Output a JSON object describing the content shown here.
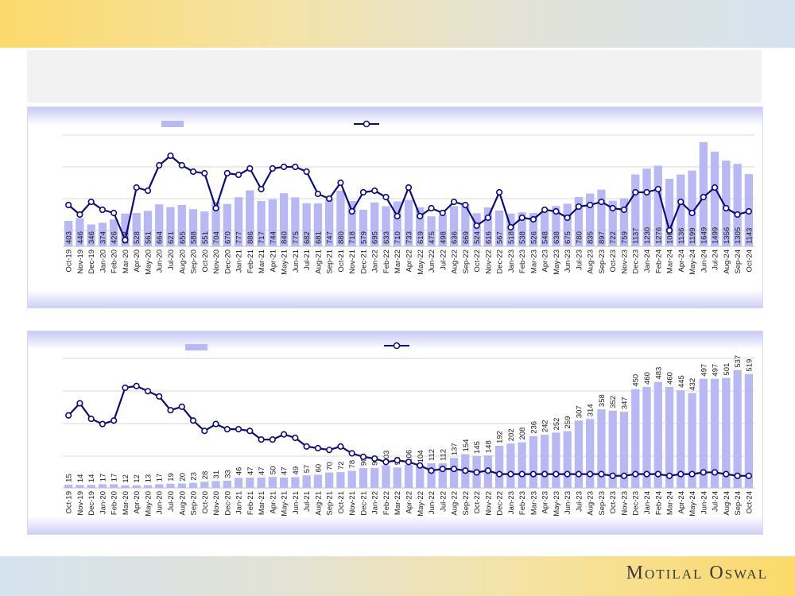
{
  "brand": {
    "name": "Motilal Oswal"
  },
  "colors": {
    "bar": "#b8b8f4",
    "line": "#0d0d7a",
    "grid": "#d9d9d9",
    "text": "#1a1a1a"
  },
  "chart_data": [
    {
      "type": "bar+line",
      "categories": [
        "Oct-19",
        "Nov-19",
        "Dec-19",
        "Jan-20",
        "Feb-20",
        "Mar-20",
        "Apr-20",
        "May-20",
        "Jun-20",
        "Jul-20",
        "Aug-20",
        "Sep-20",
        "Oct-20",
        "Nov-20",
        "Dec-20",
        "Jan-21",
        "Feb-21",
        "Mar-21",
        "Apr-21",
        "May-21",
        "Jun-21",
        "Jul-21",
        "Aug-21",
        "Sep-21",
        "Oct-21",
        "Nov-21",
        "Dec-21",
        "Jan-22",
        "Feb-22",
        "Mar-22",
        "Apr-22",
        "May-22",
        "Jun-22",
        "Jul-22",
        "Aug-22",
        "Sep-22",
        "Oct-22",
        "Nov-22",
        "Dec-22",
        "Jan-23",
        "Feb-23",
        "Mar-23",
        "Apr-23",
        "May-23",
        "Jun-23",
        "Jul-23",
        "Aug-23",
        "Sep-23",
        "Oct-23",
        "Nov-23",
        "Dec-23",
        "Jan-24",
        "Feb-24",
        "Mar-24",
        "Apr-24",
        "May-24",
        "Jun-24",
        "Jul-24",
        "Aug-24",
        "Sep-24",
        "Oct-24"
      ],
      "series": [
        {
          "kind": "bar",
          "values": [
            403,
            446,
            346,
            374,
            426,
            518,
            528,
            561,
            664,
            621,
            655,
            588,
            551,
            704,
            670,
            777,
            886,
            717,
            744,
            840,
            775,
            682,
            681,
            747,
            880,
            718,
            579,
            695,
            633,
            710,
            733,
            619,
            475,
            498,
            636,
            669,
            524,
            616,
            567,
            518,
            538,
            526,
            548,
            638,
            675,
            780,
            835,
            897,
            722,
            759,
            1137,
            1230,
            1276,
            1068,
            1136,
            1199,
            1649,
            1499,
            1356,
            1305,
            1143
          ]
        },
        {
          "kind": "line",
          "values": [
            0.0,
            -0.6,
            0.2,
            -0.3,
            -0.5,
            -2.2,
            1.1,
            0.9,
            2.5,
            3.1,
            2.5,
            2.1,
            2.0,
            -0.2,
            2.0,
            1.9,
            2.3,
            1.0,
            2.3,
            2.4,
            2.4,
            2.1,
            0.7,
            0.4,
            1.4,
            -0.4,
            0.8,
            0.9,
            0.5,
            -0.7,
            1.1,
            -0.7,
            -0.2,
            -0.5,
            0.2,
            0.0,
            -1.3,
            -0.8,
            0.8,
            -1.4,
            -0.8,
            -0.9,
            -0.3,
            -0.4,
            -0.8,
            -0.1,
            0.0,
            0.2,
            -0.2,
            -0.3,
            0.8,
            0.8,
            1.0,
            -1.6,
            0.2,
            -0.5,
            0.5,
            1.1,
            -0.2,
            -0.6,
            -0.4
          ]
        }
      ]
    },
    {
      "type": "bar+line",
      "categories": [
        "Oct-19",
        "Nov-19",
        "Dec-19",
        "Jan-20",
        "Feb-20",
        "Mar-20",
        "Apr-20",
        "May-20",
        "Jun-20",
        "Jul-20",
        "Aug-20",
        "Sep-20",
        "Oct-20",
        "Nov-20",
        "Dec-20",
        "Jan-21",
        "Feb-21",
        "Mar-21",
        "Apr-21",
        "May-21",
        "Jun-21",
        "Jul-21",
        "Aug-21",
        "Sep-21",
        "Oct-21",
        "Nov-21",
        "Dec-21",
        "Jan-22",
        "Feb-22",
        "Mar-22",
        "Apr-22",
        "May-22",
        "Jun-22",
        "Jul-22",
        "Aug-22",
        "Sep-22",
        "Oct-22",
        "Nov-22",
        "Dec-22",
        "Jan-23",
        "Feb-23",
        "Mar-23",
        "Apr-23",
        "May-23",
        "Jun-23",
        "Jul-23",
        "Aug-23",
        "Sep-23",
        "Oct-23",
        "Nov-23",
        "Dec-23",
        "Jan-24",
        "Feb-24",
        "Mar-24",
        "Apr-24",
        "May-24",
        "Jun-24",
        "Jul-24",
        "Aug-24",
        "Sep-24",
        "Oct-24"
      ],
      "series": [
        {
          "kind": "bar",
          "values": [
            15,
            14,
            14,
            17,
            17,
            12,
            12,
            13,
            17,
            19,
            20,
            23,
            28,
            31,
            33,
            46,
            47,
            47,
            50,
            47,
            49,
            57,
            60,
            70,
            72,
            78,
            90,
            91,
            103,
            93,
            106,
            104,
            112,
            112,
            137,
            154,
            145,
            148,
            192,
            202,
            208,
            236,
            242,
            252,
            259,
            307,
            314,
            358,
            352,
            347,
            450,
            460,
            483,
            460,
            445,
            432,
            497,
            497,
            501,
            537,
            519
          ]
        },
        {
          "kind": "line",
          "values": [
            4.7,
            5.4,
            4.5,
            4.2,
            4.4,
            6.3,
            6.4,
            6.1,
            5.8,
            5.0,
            5.2,
            4.4,
            3.8,
            4.2,
            3.9,
            3.9,
            3.8,
            3.3,
            3.3,
            3.6,
            3.4,
            2.9,
            2.8,
            2.7,
            2.9,
            2.5,
            2.3,
            2.2,
            2.0,
            2.1,
            2.0,
            1.8,
            1.5,
            1.6,
            1.6,
            1.5,
            1.4,
            1.5,
            1.3,
            1.3,
            1.3,
            1.3,
            1.3,
            1.3,
            1.3,
            1.3,
            1.3,
            1.3,
            1.2,
            1.2,
            1.3,
            1.3,
            1.3,
            1.2,
            1.3,
            1.3,
            1.4,
            1.4,
            1.3,
            1.2,
            1.2
          ]
        }
      ]
    }
  ]
}
